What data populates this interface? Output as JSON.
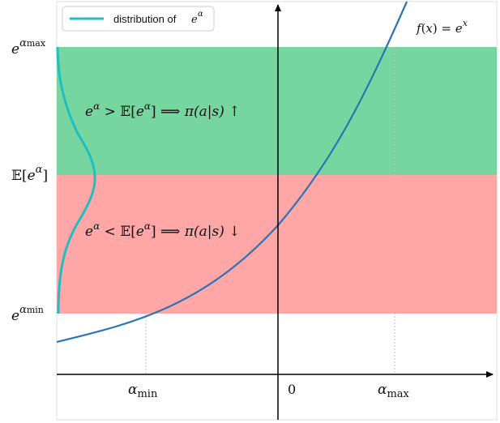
{
  "figure": {
    "legend": {
      "label": "distribution of ",
      "label_sup": "α"
    },
    "function_label": {
      "prefix": "f",
      "open": "(",
      "var": "x",
      "close": ") = ",
      "base": "e",
      "sup": "x"
    },
    "y_labels": {
      "top": {
        "base": "e",
        "sup": "α",
        "sub": "max"
      },
      "mid": {
        "bb": "𝔼",
        "open": "[",
        "base": "e",
        "sup": "α",
        "close": "]"
      },
      "bottom": {
        "base": "e",
        "sup": "α",
        "sub": "min"
      }
    },
    "x_labels": {
      "min": {
        "base": "α",
        "sub": "min"
      },
      "zero": "0",
      "max": {
        "base": "α",
        "sub": "max"
      }
    },
    "region_upper": {
      "lhs": "e",
      "lhs_sup": "α",
      "rel": " > ",
      "bb": "𝔼",
      "open": "[",
      "e2": "e",
      "e2_sup": "α",
      "close": "] ⟹ ",
      "pi": "π",
      "args": "(a|s) ",
      "arrow": "↑",
      "color": "#77d6a0"
    },
    "region_lower": {
      "lhs": "e",
      "lhs_sup": "α",
      "rel": " < ",
      "bb": "𝔼",
      "open": "[",
      "e2": "e",
      "e2_sup": "α",
      "close": "] ⟹ ",
      "pi": "π",
      "args": "(a|s) ",
      "arrow": "↓",
      "color": "#ffa6a6"
    },
    "colors": {
      "curve": "#2a74b5",
      "distribution": "#1fbfc1",
      "axis": "#000000",
      "guide": "#bdbdbd"
    }
  }
}
